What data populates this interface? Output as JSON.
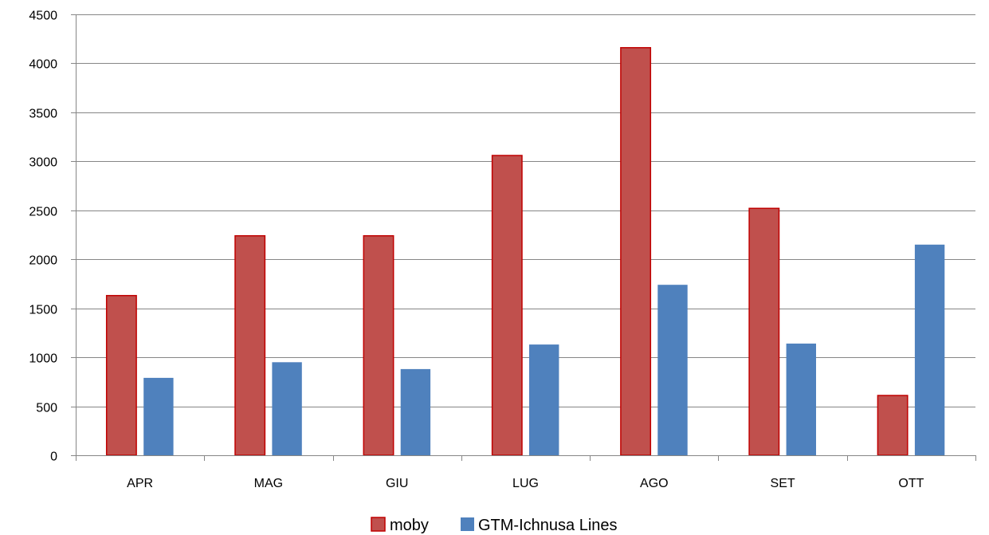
{
  "chart_data": {
    "type": "bar",
    "categories": [
      "APR",
      "MAG",
      "GIU",
      "LUG",
      "AGO",
      "SET",
      "OTT"
    ],
    "series": [
      {
        "name": "moby",
        "values": [
          1630,
          2240,
          2240,
          3060,
          4160,
          2520,
          610
        ],
        "color": "#c0504d",
        "stroke": "#c00000"
      },
      {
        "name": "GTM-Ichnusa Lines",
        "values": [
          790,
          950,
          880,
          1130,
          1740,
          1140,
          2150
        ],
        "color": "#4f81bd",
        "stroke": "#4f81bd"
      }
    ],
    "ylim": [
      0,
      4500
    ],
    "yticks": [
      0,
      500,
      1000,
      1500,
      2000,
      2500,
      3000,
      3500,
      4000,
      4500
    ],
    "grid": true,
    "legend": "bottom"
  }
}
